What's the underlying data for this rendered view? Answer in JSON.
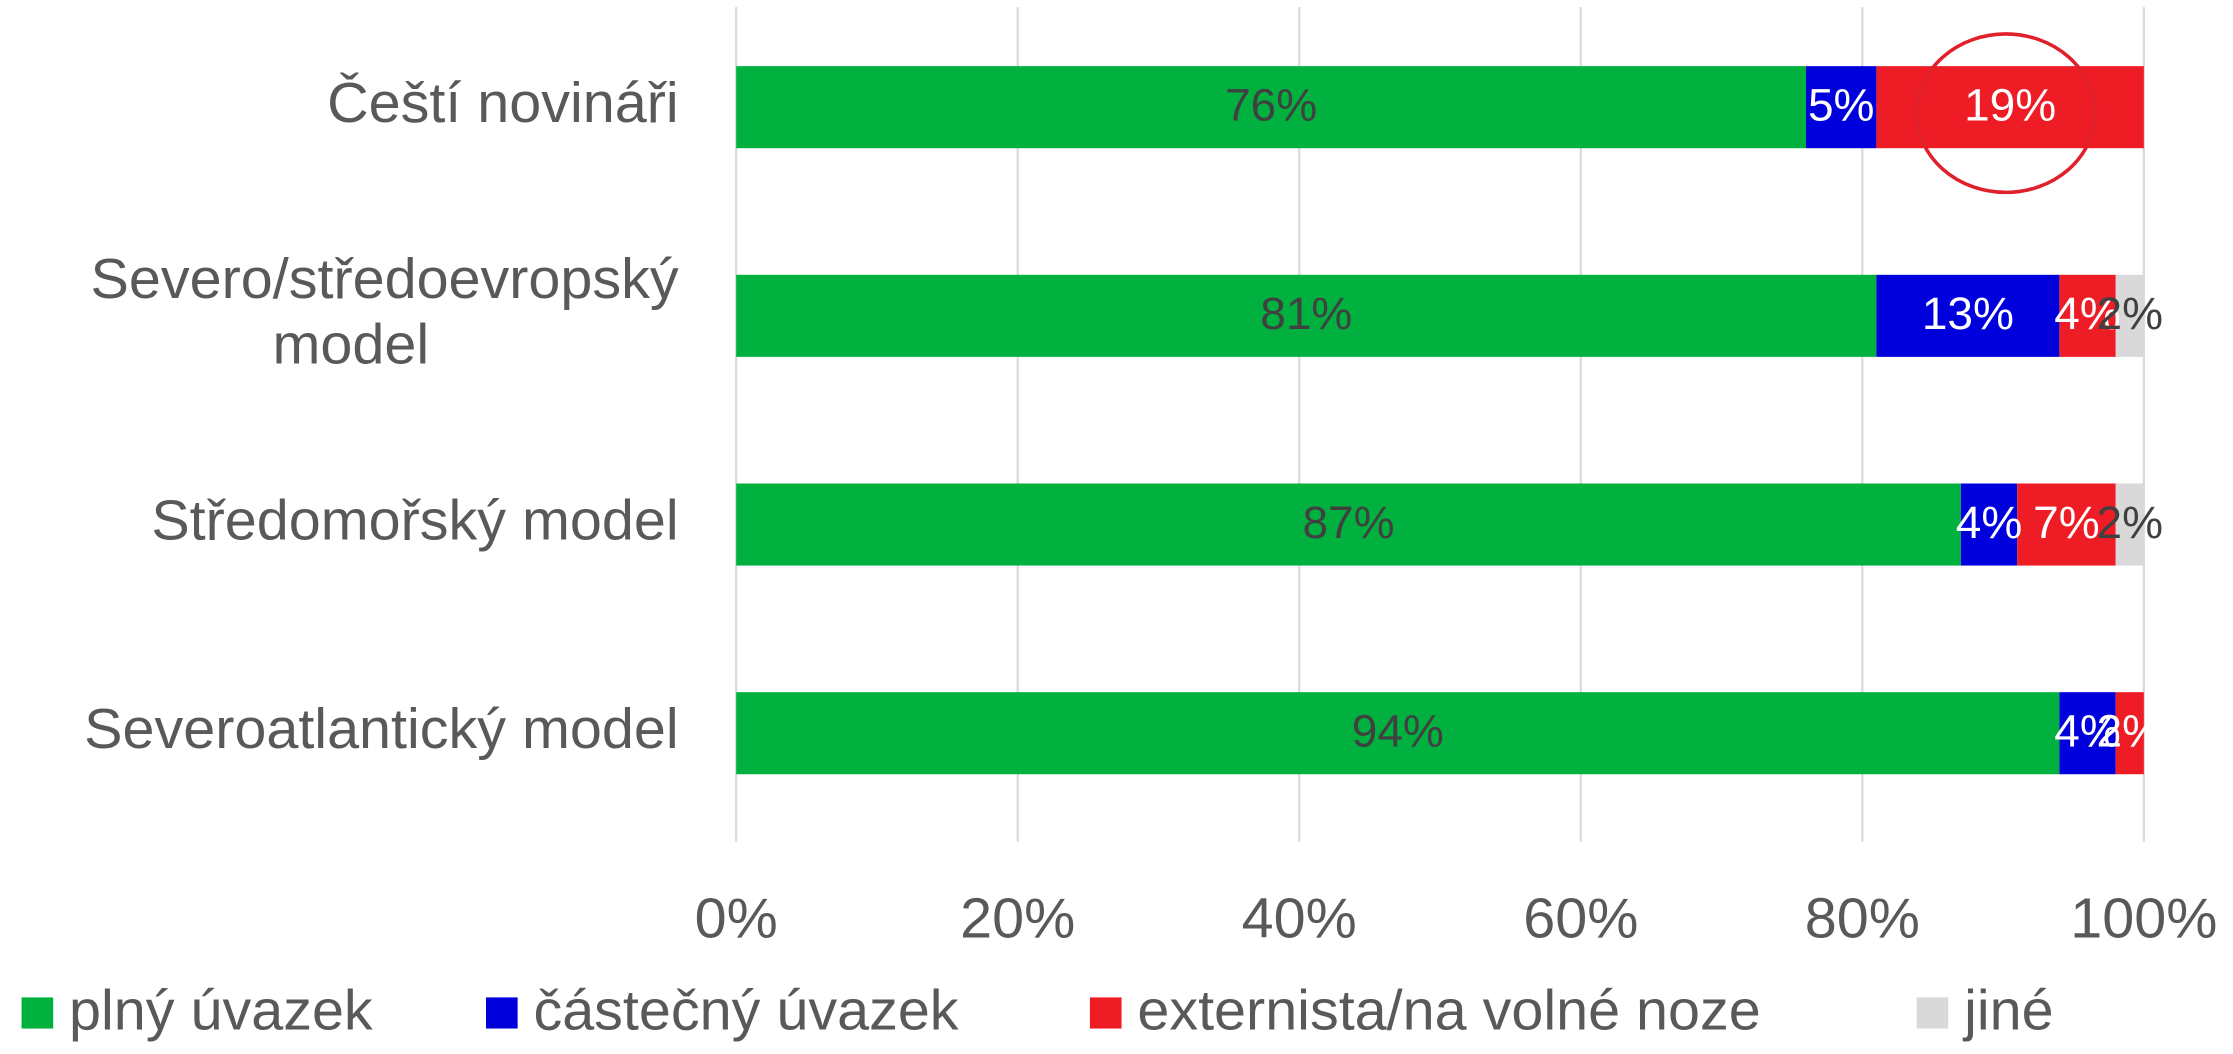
{
  "chart_data": {
    "type": "stacked_barh",
    "categories": [
      "Čeští novináři",
      "Severo/středoevropský model",
      "Středomořský model",
      "Severoatlantický model"
    ],
    "series": [
      {
        "name": "plný úvazek",
        "color": "#00b140",
        "values": [
          76,
          81,
          87,
          94
        ],
        "value_labels": [
          "76%",
          "81%",
          "87%",
          "94%"
        ]
      },
      {
        "name": "částečný úvazek",
        "color": "#0000dd",
        "values": [
          5,
          13,
          4,
          4
        ],
        "value_labels": [
          "5%",
          "13%",
          "4%",
          "4%"
        ]
      },
      {
        "name": "externista/na volné noze",
        "color": "#ee1c25",
        "values": [
          19,
          4,
          7,
          2
        ],
        "value_labels": [
          "19%",
          "4%",
          "7%",
          "2%"
        ]
      },
      {
        "name": "jiné",
        "color": "#d9d9d9",
        "values": [
          null,
          2,
          2,
          null
        ],
        "value_labels": [
          null,
          "2%",
          "2%",
          null
        ]
      }
    ],
    "xlim": [
      0,
      100
    ],
    "xticks": [
      {
        "value": 0,
        "label": "0%"
      },
      {
        "value": 20,
        "label": "20%"
      },
      {
        "value": 40,
        "label": "40%"
      },
      {
        "value": 60,
        "label": "60%"
      },
      {
        "value": 80,
        "label": "80%"
      },
      {
        "value": 100,
        "label": "100%"
      }
    ],
    "grid": true,
    "legend": "bottom"
  }
}
